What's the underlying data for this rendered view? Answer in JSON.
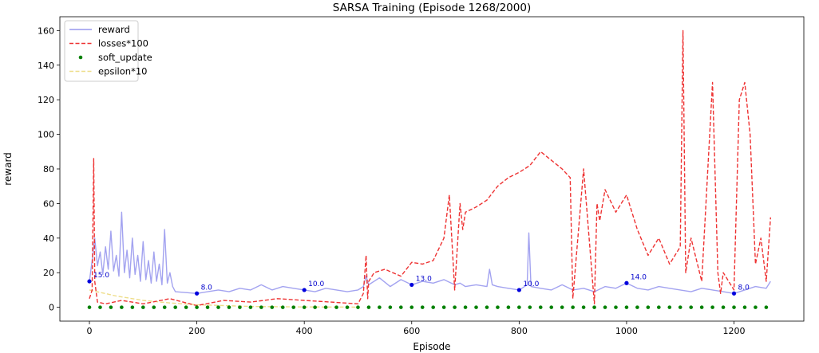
{
  "chart_data": {
    "type": "line",
    "title": "SARSA Training (Episode 1268/2000)",
    "xlabel": "Episode",
    "ylabel": "reward",
    "xlim": [
      -55,
      1330
    ],
    "ylim": [
      -8,
      168
    ],
    "xticks": [
      0,
      200,
      400,
      600,
      800,
      1000,
      1200
    ],
    "yticks": [
      0,
      20,
      40,
      60,
      80,
      100,
      120,
      140,
      160
    ],
    "grid": false,
    "legend_position": "top-left",
    "series": [
      {
        "name": "reward",
        "style": "solid",
        "color": "#9999ee",
        "x": [
          0,
          5,
          10,
          15,
          20,
          25,
          30,
          35,
          40,
          45,
          50,
          55,
          60,
          65,
          70,
          75,
          80,
          85,
          90,
          95,
          100,
          105,
          110,
          115,
          120,
          125,
          130,
          135,
          140,
          145,
          150,
          155,
          160,
          200,
          240,
          260,
          280,
          300,
          320,
          340,
          360,
          380,
          400,
          420,
          440,
          460,
          480,
          500,
          510,
          515,
          520,
          540,
          560,
          580,
          600,
          620,
          640,
          660,
          680,
          690,
          700,
          720,
          740,
          745,
          750,
          760,
          780,
          800,
          815,
          818,
          822,
          840,
          860,
          880,
          900,
          920,
          940,
          960,
          980,
          1000,
          1020,
          1040,
          1060,
          1080,
          1100,
          1120,
          1140,
          1160,
          1180,
          1200,
          1220,
          1240,
          1260,
          1268
        ],
        "y": [
          15,
          27,
          40,
          24,
          32,
          19,
          35,
          22,
          44,
          21,
          30,
          18,
          55,
          20,
          33,
          17,
          40,
          19,
          30,
          15,
          38,
          16,
          27,
          14,
          32,
          15,
          25,
          13,
          45,
          14,
          20,
          12,
          9,
          8,
          10,
          9,
          11,
          10,
          13,
          10,
          12,
          11,
          10,
          9,
          11,
          10,
          9,
          10,
          12,
          18,
          13,
          17,
          12,
          16,
          13,
          15,
          14,
          16,
          13,
          14,
          12,
          13,
          12,
          22,
          13,
          12,
          11,
          10,
          13,
          43,
          12,
          11,
          10,
          13,
          10,
          11,
          9,
          12,
          11,
          14,
          11,
          10,
          12,
          11,
          10,
          9,
          11,
          10,
          9,
          8,
          10,
          12,
          11,
          15
        ]
      },
      {
        "name": "losses*100",
        "style": "dashed",
        "color": "#ee3333",
        "x": [
          0,
          5,
          8,
          10,
          15,
          30,
          60,
          100,
          150,
          200,
          250,
          300,
          350,
          400,
          450,
          500,
          510,
          515,
          518,
          520,
          530,
          550,
          580,
          600,
          620,
          640,
          660,
          670,
          680,
          690,
          695,
          700,
          720,
          740,
          760,
          780,
          800,
          820,
          840,
          860,
          880,
          895,
          900,
          920,
          940,
          945,
          950,
          960,
          980,
          1000,
          1020,
          1040,
          1060,
          1080,
          1100,
          1105,
          1110,
          1120,
          1140,
          1160,
          1170,
          1175,
          1180,
          1200,
          1210,
          1220,
          1230,
          1240,
          1250,
          1260,
          1268
        ],
        "y": [
          5,
          10,
          86,
          15,
          3,
          2,
          4,
          2,
          5,
          1,
          4,
          3,
          5,
          4,
          3,
          2,
          8,
          30,
          5,
          15,
          20,
          22,
          18,
          26,
          25,
          27,
          40,
          65,
          10,
          60,
          45,
          55,
          58,
          62,
          70,
          75,
          78,
          82,
          90,
          85,
          80,
          75,
          5,
          80,
          2,
          60,
          50,
          68,
          55,
          65,
          45,
          30,
          40,
          25,
          35,
          160,
          20,
          40,
          15,
          130,
          20,
          8,
          20,
          10,
          120,
          130,
          100,
          25,
          40,
          15,
          52
        ]
      },
      {
        "name": "soft_update",
        "style": "points",
        "color": "#008000",
        "x": [
          0,
          20,
          40,
          60,
          80,
          100,
          120,
          140,
          160,
          180,
          200,
          220,
          240,
          260,
          280,
          300,
          320,
          340,
          360,
          380,
          400,
          420,
          440,
          460,
          480,
          500,
          520,
          540,
          560,
          580,
          600,
          620,
          640,
          660,
          680,
          700,
          720,
          740,
          760,
          780,
          800,
          820,
          840,
          860,
          880,
          900,
          920,
          940,
          960,
          980,
          1000,
          1020,
          1040,
          1060,
          1080,
          1100,
          1120,
          1140,
          1160,
          1180,
          1200,
          1220,
          1240,
          1260
        ],
        "y": [
          0,
          0,
          0,
          0,
          0,
          0,
          0,
          0,
          0,
          0,
          0,
          0,
          0,
          0,
          0,
          0,
          0,
          0,
          0,
          0,
          0,
          0,
          0,
          0,
          0,
          0,
          0,
          0,
          0,
          0,
          0,
          0,
          0,
          0,
          0,
          0,
          0,
          0,
          0,
          0,
          0,
          0,
          0,
          0,
          0,
          0,
          0,
          0,
          0,
          0,
          0,
          0,
          0,
          0,
          0,
          0,
          0,
          0,
          0,
          0,
          0,
          0,
          0,
          0
        ]
      },
      {
        "name": "epsilon*10",
        "style": "dashed",
        "color": "#eedd88",
        "x": [
          0,
          50,
          100,
          150,
          200,
          250,
          300,
          400,
          500
        ],
        "y": [
          10,
          6.5,
          4,
          2.5,
          1.5,
          1,
          0.5,
          0.2,
          0.1
        ]
      }
    ],
    "annotations": [
      {
        "x": 0,
        "y": 15,
        "label": "15.0"
      },
      {
        "x": 200,
        "y": 8,
        "label": "8.0"
      },
      {
        "x": 400,
        "y": 10,
        "label": "10.0"
      },
      {
        "x": 600,
        "y": 13,
        "label": "13.0"
      },
      {
        "x": 800,
        "y": 10,
        "label": "10.0"
      },
      {
        "x": 1000,
        "y": 14,
        "label": "14.0"
      },
      {
        "x": 1200,
        "y": 8,
        "label": "8.0"
      }
    ],
    "annotation_color": "#0000dd"
  }
}
